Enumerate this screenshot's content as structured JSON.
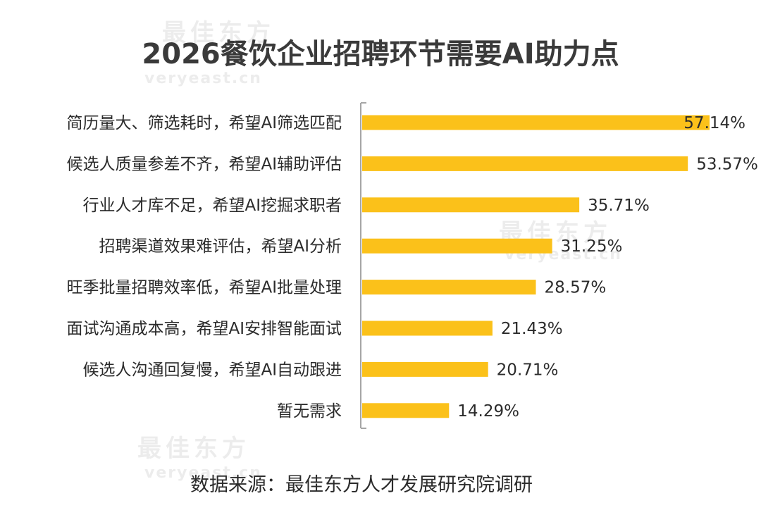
{
  "watermark": {
    "text": "最佳东方",
    "url": "veryeast.cn"
  },
  "colors": {
    "bar": "#FBC11A",
    "axis": "#a6a6a6",
    "text": "#2b2b2b",
    "title": "#3a3a3a"
  },
  "source": "数据来源：最佳东方人才发展研究院调研",
  "chart_data": {
    "type": "bar",
    "orientation": "horizontal",
    "title": "2026餐饮企业招聘环节需要AI助力点",
    "xlabel": "",
    "ylabel": "",
    "xlim": [
      0,
      60
    ],
    "grid": false,
    "legend": "none",
    "categories": [
      "简历量大、筛选耗时，希望AI筛选匹配",
      "候选人质量参差不齐，希望AI辅助评估",
      "行业人才库不足，希望AI挖掘求职者",
      "招聘渠道效果难评估，希望AI分析",
      "旺季批量招聘效率低，希望AI批量处理",
      "面试沟通成本高，希望AI安排智能面试",
      "候选人沟通回复慢，希望AI自动跟进",
      "暂无需求"
    ],
    "values": [
      57.14,
      53.57,
      35.71,
      31.25,
      28.57,
      21.43,
      20.71,
      14.29
    ],
    "value_labels": [
      "57.14%",
      "53.57%",
      "35.71%",
      "31.25%",
      "28.57%",
      "21.43%",
      "20.71%",
      "14.29%"
    ]
  }
}
